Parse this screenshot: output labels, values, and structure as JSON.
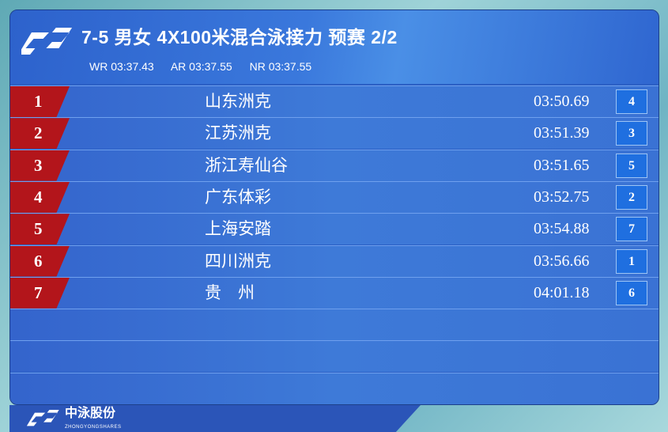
{
  "header": {
    "title": "7-5 男女 4X100米混合泳接力 预赛 2/2",
    "records": [
      "WR 03:37.43",
      "AR 03:37.55",
      "NR 03:37.55"
    ]
  },
  "results": [
    {
      "rank": "1",
      "team": "山东洲克",
      "time": "03:50.69",
      "lane": "4"
    },
    {
      "rank": "2",
      "team": "江苏洲克",
      "time": "03:51.39",
      "lane": "3"
    },
    {
      "rank": "3",
      "team": "浙江寿仙谷",
      "time": "03:51.65",
      "lane": "5"
    },
    {
      "rank": "4",
      "team": "广东体彩",
      "time": "03:52.75",
      "lane": "2"
    },
    {
      "rank": "5",
      "team": "上海安踏",
      "time": "03:54.88",
      "lane": "7"
    },
    {
      "rank": "6",
      "team": "四川洲克",
      "time": "03:56.66",
      "lane": "1"
    },
    {
      "rank": "7",
      "team": "贵　州",
      "time": "04:01.18",
      "lane": "6"
    }
  ],
  "empty_rows": 3,
  "footer": {
    "brand": "中泳股份",
    "brand_sub": "ZHONGYONGSHARES"
  },
  "colors": {
    "panel": "#2b5fc4",
    "rank_tab": "#b3151b",
    "lane_box": "#1f6fe0"
  }
}
